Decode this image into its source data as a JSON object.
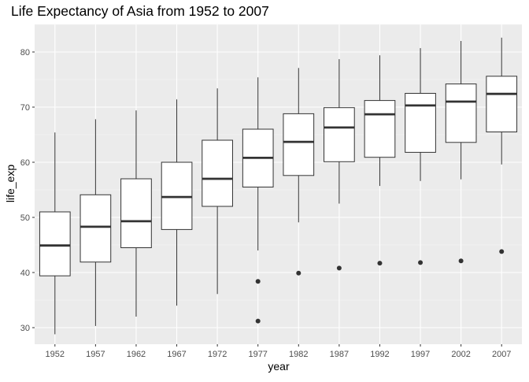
{
  "chart_data": {
    "type": "boxplot",
    "title": "Life Expectancy of Asia from 1952 to 2007",
    "xlabel": "year",
    "ylabel": "life_exp",
    "ylim": [
      27,
      85
    ],
    "yticks": [
      30,
      40,
      50,
      60,
      70,
      80
    ],
    "grid": true,
    "theme": "ggplot2 grey",
    "colors": {
      "panel": "#ebebeb",
      "grid_major": "#ffffff",
      "grid_minor": "#f5f5f5",
      "box_fill": "#ffffff",
      "line": "#333333",
      "tick_text": "#4d4d4d",
      "title_text": "#000000"
    },
    "categories": [
      "1952",
      "1957",
      "1962",
      "1967",
      "1972",
      "1977",
      "1982",
      "1987",
      "1992",
      "1997",
      "2002",
      "2007"
    ],
    "boxes": [
      {
        "min": 28.8,
        "q1": 39.4,
        "median": 44.9,
        "q3": 51.0,
        "max": 65.4,
        "outliers": []
      },
      {
        "min": 30.3,
        "q1": 41.9,
        "median": 48.3,
        "q3": 54.1,
        "max": 67.8,
        "outliers": []
      },
      {
        "min": 32.0,
        "q1": 44.5,
        "median": 49.3,
        "q3": 57.0,
        "max": 69.4,
        "outliers": []
      },
      {
        "min": 34.0,
        "q1": 47.8,
        "median": 53.7,
        "q3": 60.0,
        "max": 71.4,
        "outliers": []
      },
      {
        "min": 36.1,
        "q1": 52.0,
        "median": 57.0,
        "q3": 64.0,
        "max": 73.4,
        "outliers": []
      },
      {
        "min": 44.0,
        "q1": 55.5,
        "median": 60.8,
        "q3": 66.0,
        "max": 75.4,
        "outliers": [
          38.4,
          31.2
        ]
      },
      {
        "min": 49.1,
        "q1": 57.6,
        "median": 63.7,
        "q3": 68.8,
        "max": 77.1,
        "outliers": [
          39.9
        ]
      },
      {
        "min": 52.5,
        "q1": 60.1,
        "median": 66.3,
        "q3": 69.9,
        "max": 78.7,
        "outliers": [
          40.8
        ]
      },
      {
        "min": 55.7,
        "q1": 60.9,
        "median": 68.7,
        "q3": 71.2,
        "max": 79.4,
        "outliers": [
          41.7
        ]
      },
      {
        "min": 56.6,
        "q1": 61.8,
        "median": 70.3,
        "q3": 72.5,
        "max": 80.7,
        "outliers": [
          41.8
        ]
      },
      {
        "min": 56.9,
        "q1": 63.6,
        "median": 71.0,
        "q3": 74.2,
        "max": 82.0,
        "outliers": [
          42.1
        ]
      },
      {
        "min": 59.6,
        "q1": 65.5,
        "median": 72.4,
        "q3": 75.6,
        "max": 82.6,
        "outliers": [
          43.8
        ]
      }
    ]
  }
}
